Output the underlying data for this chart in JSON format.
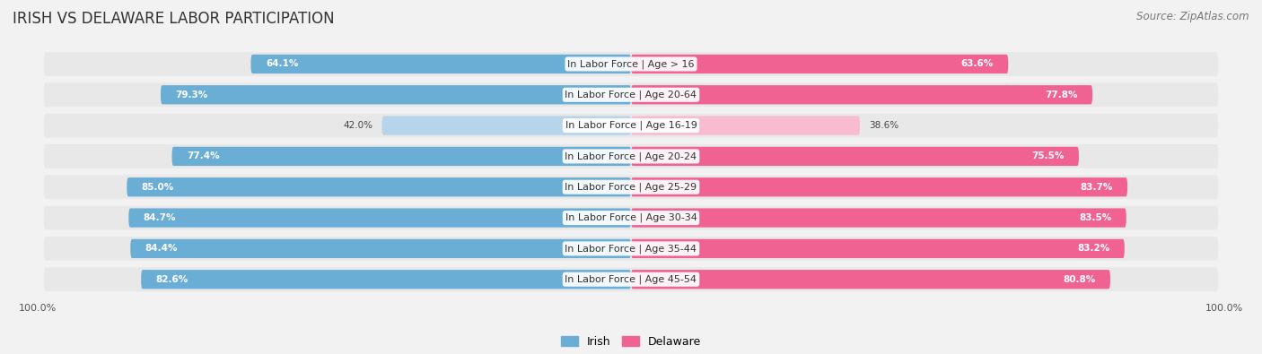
{
  "title": "IRISH VS DELAWARE LABOR PARTICIPATION",
  "source": "Source: ZipAtlas.com",
  "categories": [
    "In Labor Force | Age > 16",
    "In Labor Force | Age 20-64",
    "In Labor Force | Age 16-19",
    "In Labor Force | Age 20-24",
    "In Labor Force | Age 25-29",
    "In Labor Force | Age 30-34",
    "In Labor Force | Age 35-44",
    "In Labor Force | Age 45-54"
  ],
  "irish_values": [
    64.1,
    79.3,
    42.0,
    77.4,
    85.0,
    84.7,
    84.4,
    82.6
  ],
  "delaware_values": [
    63.6,
    77.8,
    38.6,
    75.5,
    83.7,
    83.5,
    83.2,
    80.8
  ],
  "irish_color": "#6aadd5",
  "irish_color_light": "#b8d4ea",
  "delaware_color": "#f06292",
  "delaware_color_light": "#f8bbd0",
  "row_bg_color": "#e8e8e8",
  "bg_color": "#f2f2f2",
  "bar_height": 0.62,
  "max_val": 100.0,
  "legend_irish": "Irish",
  "legend_delaware": "Delaware",
  "title_fontsize": 12,
  "label_fontsize": 8,
  "value_fontsize": 7.5,
  "source_fontsize": 8.5
}
